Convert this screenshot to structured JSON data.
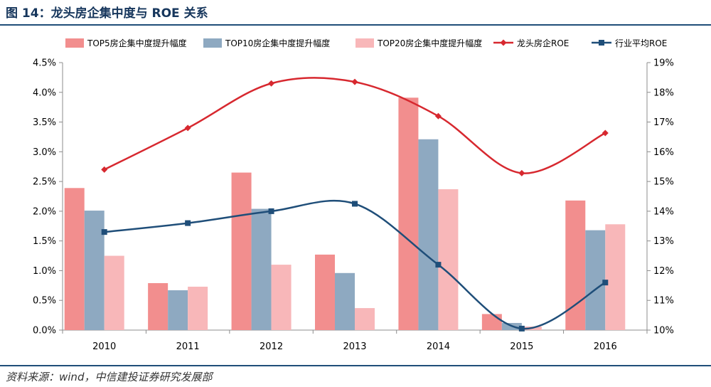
{
  "figure": {
    "title": "图 14：龙头房企集中度与 ROE 关系",
    "source": "资料来源：wind，中信建投证券研究发展部"
  },
  "chart_data": {
    "type": "bar",
    "categories": [
      "2010",
      "2011",
      "2012",
      "2013",
      "2014",
      "2015",
      "2016"
    ],
    "series": [
      {
        "name": "TOP5房企集中度提升幅度",
        "type": "bar",
        "axis": "left",
        "color": "#f28e8e",
        "values": [
          2.39,
          0.79,
          2.65,
          1.27,
          3.91,
          0.27,
          2.18
        ]
      },
      {
        "name": "TOP10房企集中度提升幅度",
        "type": "bar",
        "axis": "left",
        "color": "#8ea9c1",
        "values": [
          2.01,
          0.67,
          2.04,
          0.96,
          3.21,
          0.12,
          1.68
        ]
      },
      {
        "name": "TOP20房企集中度提升幅度",
        "type": "bar",
        "axis": "left",
        "color": "#f8b7b9",
        "values": [
          1.25,
          0.73,
          1.1,
          0.37,
          2.37,
          0.06,
          1.78
        ]
      },
      {
        "name": "龙头房企ROE",
        "type": "line",
        "axis": "right",
        "color": "#d7282f",
        "marker": "diamond",
        "values": [
          15.4,
          16.8,
          18.3,
          18.35,
          17.2,
          15.28,
          16.63
        ]
      },
      {
        "name": "行业平均ROE",
        "type": "line",
        "axis": "right",
        "color": "#1f4e79",
        "marker": "square",
        "values": [
          13.3,
          13.6,
          14.0,
          14.25,
          12.2,
          10.05,
          11.6
        ]
      }
    ],
    "y_left": {
      "min": 0,
      "max": 4.5,
      "step": 0.5,
      "tick_labels": [
        "0.0%",
        "0.5%",
        "1.0%",
        "1.5%",
        "2.0%",
        "2.5%",
        "3.0%",
        "3.5%",
        "4.0%",
        "4.5%"
      ]
    },
    "y_right": {
      "min": 10,
      "max": 19,
      "step": 1,
      "tick_labels": [
        "10%",
        "11%",
        "12%",
        "13%",
        "14%",
        "15%",
        "16%",
        "17%",
        "18%",
        "19%"
      ]
    },
    "legend_position": "top",
    "smooth_lines": true,
    "grid": false
  }
}
